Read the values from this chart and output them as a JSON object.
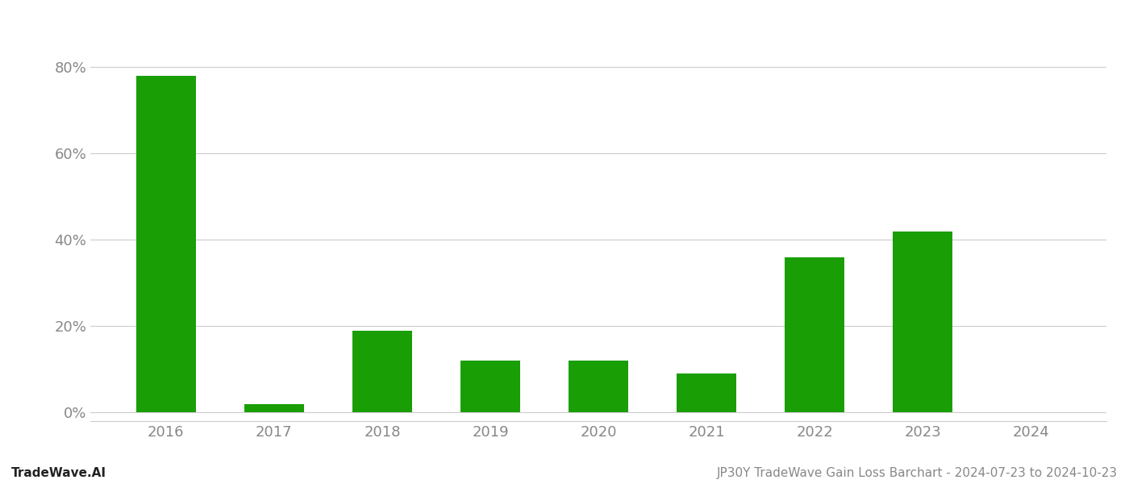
{
  "categories": [
    "2016",
    "2017",
    "2018",
    "2019",
    "2020",
    "2021",
    "2022",
    "2023",
    "2024"
  ],
  "values": [
    0.78,
    0.02,
    0.19,
    0.12,
    0.12,
    0.09,
    0.36,
    0.42,
    0.0
  ],
  "bar_color": "#1a9e06",
  "background_color": "#ffffff",
  "grid_color": "#cccccc",
  "ytick_values": [
    0.0,
    0.2,
    0.4,
    0.6,
    0.8
  ],
  "ylim": [
    -0.02,
    0.9
  ],
  "footer_left": "TradeWave.AI",
  "footer_right": "JP30Y TradeWave Gain Loss Barchart - 2024-07-23 to 2024-10-23",
  "footer_fontsize": 11,
  "axis_label_color": "#888888",
  "footer_left_color": "#222222",
  "tick_fontsize": 13,
  "bar_width": 0.55
}
